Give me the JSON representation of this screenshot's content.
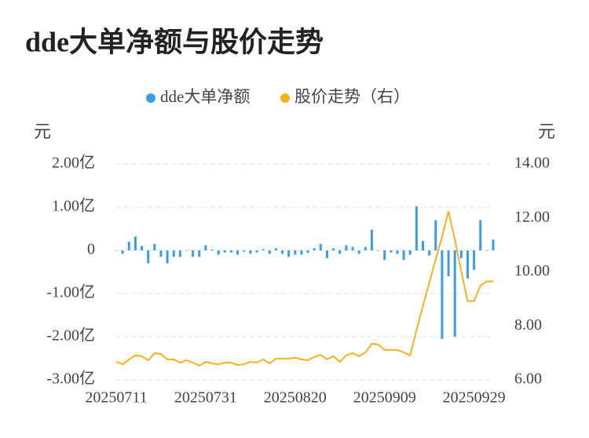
{
  "chart_data": {
    "type": "bar-line",
    "title": "dde大单净额与股价走势",
    "y_unit": "元",
    "y2_unit": "元",
    "categories": [
      "20250711",
      null,
      null,
      null,
      null,
      null,
      null,
      null,
      null,
      null,
      null,
      null,
      null,
      null,
      "20250731",
      null,
      null,
      null,
      null,
      null,
      null,
      null,
      null,
      null,
      null,
      null,
      null,
      null,
      "20250820",
      null,
      null,
      null,
      null,
      null,
      null,
      null,
      null,
      null,
      null,
      null,
      null,
      null,
      "20250909",
      null,
      null,
      null,
      null,
      null,
      null,
      null,
      null,
      null,
      null,
      null,
      null,
      null,
      "20250929",
      null,
      null,
      null
    ],
    "ylim": [
      -3,
      2
    ],
    "yticks": [
      {
        "value": -3,
        "label": "-3.00亿"
      },
      {
        "value": -2,
        "label": "-2.00亿"
      },
      {
        "value": -1,
        "label": "-1.00亿"
      },
      0,
      {
        "value": 1,
        "label": "1.00亿"
      },
      {
        "value": 2,
        "label": "2.00亿"
      }
    ],
    "y2lim": [
      6,
      14
    ],
    "y2ticks": [
      {
        "value": 6,
        "label": "6.00"
      },
      {
        "value": 8,
        "label": "8.00"
      },
      {
        "value": 10,
        "label": "10.00"
      },
      {
        "value": 12,
        "label": "12.00"
      },
      {
        "value": 14,
        "label": "14.00"
      }
    ],
    "grid": true,
    "series": [
      {
        "name": "dde大单净额",
        "type": "bar",
        "color": "#3a9de8",
        "values": [
          0,
          -0.08,
          0.2,
          0.32,
          0.1,
          -0.3,
          0.15,
          -0.15,
          -0.3,
          -0.15,
          -0.15,
          0,
          -0.15,
          -0.15,
          0.12,
          0.02,
          -0.1,
          -0.05,
          -0.05,
          -0.1,
          -0.03,
          -0.08,
          -0.05,
          0.03,
          -0.08,
          0.05,
          -0.08,
          -0.15,
          -0.1,
          -0.1,
          -0.06,
          0.05,
          0.15,
          -0.18,
          0.05,
          -0.08,
          0.12,
          0.08,
          -0.08,
          0.08,
          0.48,
          0,
          -0.22,
          -0.05,
          -0.08,
          -0.22,
          -0.1,
          1.02,
          0.22,
          -0.12,
          0.7,
          -2.05,
          -0.6,
          -2.0,
          -0.18,
          -0.65,
          -0.45,
          0.7,
          0,
          0.25
        ]
      },
      {
        "name": "股价走势（右）",
        "type": "line",
        "axis": "y2",
        "color": "#f5b21f",
        "values": [
          6.67,
          6.58,
          6.76,
          6.91,
          6.88,
          6.73,
          6.99,
          6.96,
          6.76,
          6.76,
          6.64,
          6.73,
          6.64,
          6.53,
          6.67,
          6.61,
          6.58,
          6.64,
          6.64,
          6.55,
          6.58,
          6.67,
          6.64,
          6.76,
          6.61,
          6.79,
          6.79,
          6.79,
          6.82,
          6.76,
          6.73,
          6.85,
          6.93,
          6.76,
          6.88,
          6.67,
          6.91,
          6.99,
          6.88,
          7.02,
          7.34,
          7.31,
          7.11,
          7.11,
          7.11,
          7.02,
          6.91,
          7.85,
          8.74,
          9.6,
          10.47,
          11.31,
          12.25,
          11.2,
          10.03,
          8.92,
          8.92,
          9.5,
          9.65,
          9.65
        ]
      }
    ]
  }
}
